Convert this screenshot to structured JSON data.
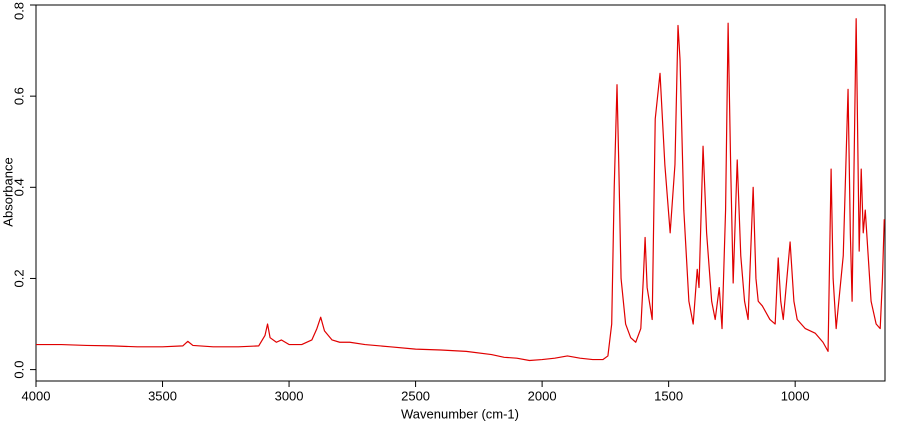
{
  "chart_data": {
    "type": "line",
    "xlabel": "Wavenumber (cm-1)",
    "ylabel": "Absorbance",
    "xlim": [
      4000,
      645
    ],
    "ylim": [
      -0.025,
      0.8
    ],
    "xticks": [
      4000,
      3500,
      3000,
      2500,
      2000,
      1500,
      1000
    ],
    "yticks": [
      {
        "value": 0,
        "label": "0.0"
      },
      0.2,
      0.4,
      0.6,
      0.8
    ],
    "grid": false,
    "x": [
      4000,
      3900,
      3800,
      3700,
      3600,
      3500,
      3420,
      3400,
      3380,
      3300,
      3200,
      3120,
      3095,
      3085,
      3075,
      3050,
      3030,
      3000,
      2950,
      2910,
      2890,
      2875,
      2860,
      2830,
      2800,
      2760,
      2700,
      2600,
      2500,
      2400,
      2300,
      2200,
      2150,
      2100,
      2050,
      2000,
      1950,
      1900,
      1850,
      1800,
      1760,
      1740,
      1725,
      1715,
      1704,
      1697,
      1688,
      1670,
      1650,
      1630,
      1610,
      1600,
      1593,
      1585,
      1565,
      1553,
      1534,
      1515,
      1494,
      1475,
      1463,
      1455,
      1440,
      1420,
      1403,
      1387,
      1380,
      1364,
      1350,
      1330,
      1316,
      1300,
      1289,
      1275,
      1265,
      1255,
      1245,
      1229,
      1215,
      1200,
      1186,
      1166,
      1155,
      1146,
      1130,
      1100,
      1079,
      1067,
      1057,
      1047,
      1020,
      1005,
      992,
      960,
      921,
      890,
      870,
      858,
      850,
      838,
      810,
      791,
      782,
      775,
      759,
      747,
      739,
      731,
      723,
      700,
      680,
      664,
      655,
      648
    ],
    "series": [
      {
        "name": "Absorbance",
        "color": "#e00000",
        "values": [
          0.055,
          0.055,
          0.053,
          0.052,
          0.05,
          0.05,
          0.052,
          0.062,
          0.053,
          0.05,
          0.05,
          0.052,
          0.075,
          0.1,
          0.07,
          0.06,
          0.065,
          0.055,
          0.055,
          0.065,
          0.09,
          0.115,
          0.085,
          0.065,
          0.06,
          0.06,
          0.055,
          0.05,
          0.045,
          0.043,
          0.04,
          0.033,
          0.027,
          0.025,
          0.02,
          0.022,
          0.025,
          0.03,
          0.025,
          0.022,
          0.022,
          0.03,
          0.1,
          0.4,
          0.625,
          0.45,
          0.2,
          0.1,
          0.07,
          0.06,
          0.09,
          0.2,
          0.29,
          0.18,
          0.11,
          0.55,
          0.65,
          0.45,
          0.3,
          0.45,
          0.755,
          0.68,
          0.35,
          0.15,
          0.1,
          0.22,
          0.18,
          0.49,
          0.3,
          0.15,
          0.11,
          0.18,
          0.09,
          0.35,
          0.76,
          0.45,
          0.19,
          0.46,
          0.25,
          0.15,
          0.11,
          0.4,
          0.2,
          0.15,
          0.14,
          0.11,
          0.1,
          0.245,
          0.15,
          0.11,
          0.28,
          0.15,
          0.11,
          0.09,
          0.08,
          0.06,
          0.04,
          0.44,
          0.2,
          0.09,
          0.25,
          0.615,
          0.3,
          0.15,
          0.77,
          0.26,
          0.44,
          0.3,
          0.35,
          0.15,
          0.1,
          0.09,
          0.2,
          0.33
        ]
      }
    ]
  }
}
